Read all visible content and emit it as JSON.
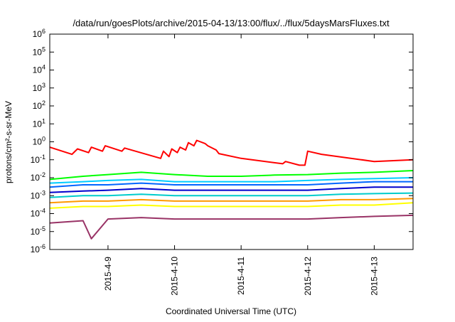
{
  "chart_data": {
    "type": "line",
    "title": "/data/run/goesPlots/archive/2015-04-13/13:00/flux/../flux/5daysMarsFluxes.txt",
    "xlabel": "Coordinated Universal Time (UTC)",
    "ylabel": "protons/cm²-s-sr-MeV",
    "yscale": "log",
    "ylim": [
      1e-06,
      1000000.0
    ],
    "xlim": [
      "2015-04-08 03:00",
      "2015-04-13 14:00"
    ],
    "y_ticks": [
      {
        "value": 1e-06,
        "base": "10",
        "exp": "-6"
      },
      {
        "value": 1e-05,
        "base": "10",
        "exp": "-5"
      },
      {
        "value": 0.0001,
        "base": "10",
        "exp": "-4"
      },
      {
        "value": 0.001,
        "base": "10",
        "exp": "-3"
      },
      {
        "value": 0.01,
        "base": "10",
        "exp": "-2"
      },
      {
        "value": 0.1,
        "base": "10",
        "exp": "-1"
      },
      {
        "value": 1,
        "base": "10",
        "exp": "0"
      },
      {
        "value": 10.0,
        "base": "10",
        "exp": "1"
      },
      {
        "value": 100.0,
        "base": "10",
        "exp": "2"
      },
      {
        "value": 1000.0,
        "base": "10",
        "exp": "3"
      },
      {
        "value": 10000.0,
        "base": "10",
        "exp": "4"
      },
      {
        "value": 100000.0,
        "base": "10",
        "exp": "5"
      },
      {
        "value": 1000000.0,
        "base": "10",
        "exp": "6"
      }
    ],
    "x_ticks": [
      {
        "value": "2015-04-09 00:00",
        "label": "2015-4-9"
      },
      {
        "value": "2015-04-10 00:00",
        "label": "2015-4-10"
      },
      {
        "value": "2015-04-11 00:00",
        "label": "2015-4-11"
      },
      {
        "value": "2015-04-12 00:00",
        "label": "2015-4-12"
      },
      {
        "value": "2015-04-13 00:00",
        "label": "2015-4-13"
      }
    ],
    "grid": false,
    "legend": "none",
    "series": [
      {
        "color": "#ff0000",
        "points": [
          [
            "2015-04-08 03:00",
            0.5
          ],
          [
            "2015-04-08 11:00",
            0.2
          ],
          [
            "2015-04-08 13:00",
            0.4
          ],
          [
            "2015-04-08 17:00",
            0.25
          ],
          [
            "2015-04-08 18:00",
            0.5
          ],
          [
            "2015-04-08 22:00",
            0.3
          ],
          [
            "2015-04-08 23:00",
            0.6
          ],
          [
            "2015-04-09 05:00",
            0.3
          ],
          [
            "2015-04-09 06:00",
            0.45
          ],
          [
            "2015-04-09 19:00",
            0.12
          ],
          [
            "2015-04-09 20:00",
            0.3
          ],
          [
            "2015-04-09 22:00",
            0.15
          ],
          [
            "2015-04-09 23:00",
            0.4
          ],
          [
            "2015-04-10 01:00",
            0.25
          ],
          [
            "2015-04-10 02:00",
            0.5
          ],
          [
            "2015-04-10 04:00",
            0.35
          ],
          [
            "2015-04-10 05:00",
            0.9
          ],
          [
            "2015-04-10 07:00",
            0.6
          ],
          [
            "2015-04-10 08:00",
            1.2
          ],
          [
            "2015-04-10 11:00",
            0.8
          ],
          [
            "2015-04-10 12:00",
            0.6
          ],
          [
            "2015-04-10 15:00",
            0.35
          ],
          [
            "2015-04-10 16:00",
            0.22
          ],
          [
            "2015-04-11 00:00",
            0.12
          ],
          [
            "2015-04-11 15:00",
            0.06
          ],
          [
            "2015-04-11 16:00",
            0.08
          ],
          [
            "2015-04-11 21:00",
            0.05
          ],
          [
            "2015-04-11 23:00",
            0.05
          ],
          [
            "2015-04-12 00:00",
            0.3
          ],
          [
            "2015-04-12 05:00",
            0.2
          ],
          [
            "2015-04-13 00:00",
            0.08
          ],
          [
            "2015-04-13 14:00",
            0.1
          ]
        ]
      },
      {
        "color": "#00ff00",
        "points": [
          [
            "2015-04-08 03:00",
            0.008
          ],
          [
            "2015-04-08 15:00",
            0.012
          ],
          [
            "2015-04-09 00:00",
            0.015
          ],
          [
            "2015-04-09 12:00",
            0.02
          ],
          [
            "2015-04-10 00:00",
            0.015
          ],
          [
            "2015-04-10 12:00",
            0.012
          ],
          [
            "2015-04-11 00:00",
            0.012
          ],
          [
            "2015-04-11 12:00",
            0.014
          ],
          [
            "2015-04-12 00:00",
            0.015
          ],
          [
            "2015-04-12 12:00",
            0.018
          ],
          [
            "2015-04-13 00:00",
            0.02
          ],
          [
            "2015-04-13 14:00",
            0.025
          ]
        ]
      },
      {
        "color": "#00ccff",
        "points": [
          [
            "2015-04-08 03:00",
            0.005
          ],
          [
            "2015-04-08 15:00",
            0.006
          ],
          [
            "2015-04-09 00:00",
            0.007
          ],
          [
            "2015-04-09 12:00",
            0.008
          ],
          [
            "2015-04-10 00:00",
            0.006
          ],
          [
            "2015-04-10 12:00",
            0.006
          ],
          [
            "2015-04-11 00:00",
            0.006
          ],
          [
            "2015-04-11 12:00",
            0.006
          ],
          [
            "2015-04-12 00:00",
            0.007
          ],
          [
            "2015-04-12 12:00",
            0.008
          ],
          [
            "2015-04-13 00:00",
            0.009
          ],
          [
            "2015-04-13 14:00",
            0.01
          ]
        ]
      },
      {
        "color": "#0066ff",
        "points": [
          [
            "2015-04-08 03:00",
            0.003
          ],
          [
            "2015-04-08 15:00",
            0.004
          ],
          [
            "2015-04-09 00:00",
            0.004
          ],
          [
            "2015-04-09 12:00",
            0.005
          ],
          [
            "2015-04-10 00:00",
            0.004
          ],
          [
            "2015-04-10 12:00",
            0.004
          ],
          [
            "2015-04-11 00:00",
            0.004
          ],
          [
            "2015-04-11 12:00",
            0.004
          ],
          [
            "2015-04-12 00:00",
            0.004
          ],
          [
            "2015-04-12 12:00",
            0.005
          ],
          [
            "2015-04-13 00:00",
            0.006
          ],
          [
            "2015-04-13 14:00",
            0.006
          ]
        ]
      },
      {
        "color": "#0000cc",
        "points": [
          [
            "2015-04-08 03:00",
            0.0015
          ],
          [
            "2015-04-08 15:00",
            0.0018
          ],
          [
            "2015-04-09 00:00",
            0.002
          ],
          [
            "2015-04-09 12:00",
            0.0025
          ],
          [
            "2015-04-10 00:00",
            0.002
          ],
          [
            "2015-04-10 12:00",
            0.002
          ],
          [
            "2015-04-11 00:00",
            0.002
          ],
          [
            "2015-04-11 12:00",
            0.002
          ],
          [
            "2015-04-12 00:00",
            0.002
          ],
          [
            "2015-04-12 12:00",
            0.0025
          ],
          [
            "2015-04-13 00:00",
            0.003
          ],
          [
            "2015-04-13 14:00",
            0.003
          ]
        ]
      },
      {
        "color": "#00cccc",
        "points": [
          [
            "2015-04-08 03:00",
            0.0008
          ],
          [
            "2015-04-08 15:00",
            0.001
          ],
          [
            "2015-04-09 00:00",
            0.001
          ],
          [
            "2015-04-09 12:00",
            0.0012
          ],
          [
            "2015-04-10 00:00",
            0.001
          ],
          [
            "2015-04-10 12:00",
            0.001
          ],
          [
            "2015-04-11 00:00",
            0.001
          ],
          [
            "2015-04-11 12:00",
            0.001
          ],
          [
            "2015-04-12 00:00",
            0.001
          ],
          [
            "2015-04-12 12:00",
            0.0012
          ],
          [
            "2015-04-13 00:00",
            0.0013
          ],
          [
            "2015-04-13 14:00",
            0.0014
          ]
        ]
      },
      {
        "color": "#ff9900",
        "points": [
          [
            "2015-04-08 03:00",
            0.0004
          ],
          [
            "2015-04-08 15:00",
            0.0005
          ],
          [
            "2015-04-09 00:00",
            0.0005
          ],
          [
            "2015-04-09 12:00",
            0.0006
          ],
          [
            "2015-04-10 00:00",
            0.0005
          ],
          [
            "2015-04-10 12:00",
            0.0005
          ],
          [
            "2015-04-11 00:00",
            0.0005
          ],
          [
            "2015-04-11 12:00",
            0.0005
          ],
          [
            "2015-04-12 00:00",
            0.0005
          ],
          [
            "2015-04-12 12:00",
            0.0006
          ],
          [
            "2015-04-13 00:00",
            0.0006
          ],
          [
            "2015-04-13 14:00",
            0.0007
          ]
        ]
      },
      {
        "color": "#ffff00",
        "points": [
          [
            "2015-04-08 03:00",
            0.0002
          ],
          [
            "2015-04-08 15:00",
            0.00025
          ],
          [
            "2015-04-09 00:00",
            0.00025
          ],
          [
            "2015-04-09 12:00",
            0.0003
          ],
          [
            "2015-04-10 00:00",
            0.00025
          ],
          [
            "2015-04-10 12:00",
            0.00025
          ],
          [
            "2015-04-11 00:00",
            0.00025
          ],
          [
            "2015-04-11 12:00",
            0.00025
          ],
          [
            "2015-04-12 00:00",
            0.00025
          ],
          [
            "2015-04-12 12:00",
            0.0003
          ],
          [
            "2015-04-13 00:00",
            0.0003
          ],
          [
            "2015-04-13 14:00",
            0.0004
          ]
        ]
      },
      {
        "color": "#993366",
        "points": [
          [
            "2015-04-08 03:00",
            3e-05
          ],
          [
            "2015-04-08 15:00",
            4e-05
          ],
          [
            "2015-04-08 18:00",
            4e-06
          ],
          [
            "2015-04-09 00:00",
            5e-05
          ],
          [
            "2015-04-09 12:00",
            6e-05
          ],
          [
            "2015-04-10 00:00",
            5e-05
          ],
          [
            "2015-04-10 12:00",
            5e-05
          ],
          [
            "2015-04-11 00:00",
            5e-05
          ],
          [
            "2015-04-11 12:00",
            5e-05
          ],
          [
            "2015-04-12 00:00",
            5e-05
          ],
          [
            "2015-04-12 12:00",
            6e-05
          ],
          [
            "2015-04-13 00:00",
            7e-05
          ],
          [
            "2015-04-13 14:00",
            8e-05
          ]
        ]
      }
    ]
  }
}
